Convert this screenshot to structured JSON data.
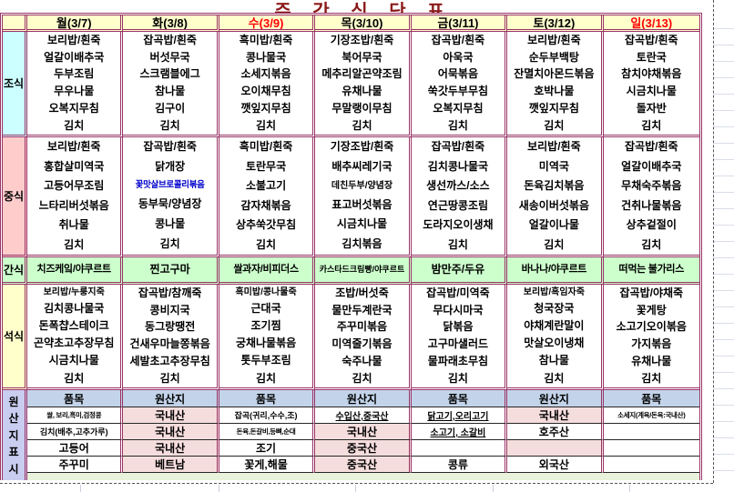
{
  "title": "주 간 식 단 표",
  "colors": {
    "border": "#993366",
    "title_color": "#8B1A1A",
    "header_bg": "#FFFFCC",
    "breakfast_label_bg": "#CCFFFF",
    "lunch_label_bg": "#FFCCCC",
    "snack_bg": "#CCFFCC",
    "dinner_label_bg": "#FFFFCC",
    "origin_header_bg": "#C3D4EA",
    "origin_label_bg": "#C9CDEF",
    "origin_pink_bg": "#F6DDDD",
    "band_green_bg": "#E9F3DC",
    "red_text": "#FF0000",
    "blue_text": "#0000CC"
  },
  "days": [
    {
      "label": "월(3/7)",
      "red": false
    },
    {
      "label": "화(3/8)",
      "red": false
    },
    {
      "label": "수(3/9)",
      "red": true
    },
    {
      "label": "목(3/10)",
      "red": false
    },
    {
      "label": "금(3/11)",
      "red": false
    },
    {
      "label": "토(3/12)",
      "red": false
    },
    {
      "label": "일(3/13)",
      "red": true
    }
  ],
  "special": {
    "blue_item": "꽃맛살브로콜리볶음"
  },
  "sections": [
    {
      "id": "breakfast",
      "label": "조식",
      "columns": [
        [
          "보리밥/흰죽",
          "얼갈이배추국",
          "두부조림",
          "무우나물",
          "오복지무침",
          "김치"
        ],
        [
          "잡곡밥/흰죽",
          "버섯무국",
          "스크램블에그",
          "참나물",
          "김구이",
          "김치"
        ],
        [
          "흑미밥/흰죽",
          "콩나물국",
          "소세지볶음",
          "오이채무침",
          "깻잎지무침",
          "김치"
        ],
        [
          "기장조밥/흰죽",
          "북어무국",
          "메추리알곤약조림",
          "유채나물",
          "무말랭이무침",
          "김치"
        ],
        [
          "잡곡밥/흰죽",
          "아욱국",
          "어묵볶음",
          "쑥갓두부무침",
          "오복지무침",
          "김치"
        ],
        [
          "보리밥/흰죽",
          "순두부백탕",
          "잔멸치아몬드볶음",
          "호박나물",
          "깻잎지무침",
          "김치"
        ],
        [
          "잡곡밥/흰죽",
          "토란국",
          "참치야채볶음",
          "시금치나물",
          "돌자반",
          "김치"
        ]
      ]
    },
    {
      "id": "lunch",
      "label": "중식",
      "columns": [
        [
          "보리밥/흰죽",
          "홍합살미역국",
          "고등어무조림",
          "느타리버섯볶음",
          "취나물",
          "김치"
        ],
        [
          "잡곡밥/흰죽",
          "닭개장",
          "꽃맛살브로콜리볶음",
          "동부묵/양념장",
          "콩나물",
          "김치"
        ],
        [
          "흑미밥/흰죽",
          "토란무국",
          "소불고기",
          "감자채볶음",
          "상추쑥갓무침",
          "김치"
        ],
        [
          "기장조밥/흰죽",
          "배추씨레기국",
          "데친두부/양념장",
          "표고버섯볶음",
          "시금치나물",
          "김치볶음"
        ],
        [
          "잡곡밥/흰죽",
          "김치콩나물국",
          "생선까스/소스",
          "연근땅콩조림",
          "도라지오이생채",
          "김치"
        ],
        [
          "보리밥/흰죽",
          "미역국",
          "돈육김치볶음",
          "새송이버섯볶음",
          "얼갈이나물",
          "김치"
        ],
        [
          "잡곡밥/흰죽",
          "얼갈이배추국",
          "무채숙주볶음",
          "건취나물볶음",
          "상추겉절이",
          "김치"
        ]
      ]
    },
    {
      "id": "snack",
      "label": "간식",
      "columns": [
        "치즈케잌/야쿠르트",
        "찐고구마",
        "쌀과자/비피더스",
        "카스타드크림빵/야쿠르트",
        "밤만주/두유",
        "바나나/야쿠르트",
        "떠먹는 불가리스"
      ]
    },
    {
      "id": "dinner",
      "label": "석식",
      "columns": [
        [
          "보리밥/누룽지죽",
          "김치콩나물국",
          "돈폭챱스테이크",
          "곤약초고추장무침",
          "시금치나물",
          "김치"
        ],
        [
          "잡곡밥/참깨죽",
          "콩비지국",
          "동그랑땡전",
          "건새우마늘쫑볶음",
          "세발초고추장무침",
          "김치"
        ],
        [
          "흑미밥/콩나물죽",
          "근대국",
          "조기찜",
          "궁채나물볶음",
          "톳두부조림",
          "김치"
        ],
        [
          "조밥/버섯죽",
          "물만두계란국",
          "주꾸미볶음",
          "미역줄기볶음",
          "숙주나물",
          "김치"
        ],
        [
          "잡곡밥/미역죽",
          "무다시마국",
          "닭볶음",
          "고구마샐러드",
          "물파래초무침",
          "김치"
        ],
        [
          "보리밥/흑임자죽",
          "청국장국",
          "야채계란말이",
          "맛살오이냉채",
          "참나물",
          "김치"
        ],
        [
          "잡곡밥/야채죽",
          "꽃게탕",
          "소고기오이볶음",
          "가지볶음",
          "유채나물",
          "김치"
        ]
      ]
    }
  ],
  "origin": {
    "label": "원산지표시",
    "headers": [
      "품목",
      "원산지",
      "품목",
      "원산지",
      "품목",
      "원산지",
      "품목"
    ],
    "rows": [
      [
        "쌀, 보리,흑미,검정콩",
        "국내산",
        "잡곡(귀리,수수,조)",
        "수입산,중국산",
        "닭고기,오리고기",
        "국내산",
        "소세지(계육/돈육:국내산)"
      ],
      [
        "김치(배추,고추가루)",
        "국내산",
        "돈육,돈갈비,등뼈,순대",
        "국내산",
        "소고기, 소갈비",
        "호주산",
        ""
      ],
      [
        "고등어",
        "국내산",
        "조기",
        "중국산",
        "",
        "",
        ""
      ],
      [
        "주꾸미",
        "베트남",
        "꽃게,해물",
        "중국산",
        "콩류",
        "외국산",
        ""
      ]
    ],
    "pink_cells": [
      [
        false,
        true,
        false,
        false,
        false,
        true,
        false
      ],
      [
        false,
        true,
        false,
        true,
        false,
        false,
        false
      ],
      [
        false,
        true,
        false,
        true,
        false,
        true,
        false
      ],
      [
        false,
        true,
        false,
        true,
        false,
        false,
        false
      ]
    ],
    "underline_cells": [
      [
        0,
        3
      ],
      [
        0,
        4
      ],
      [
        1,
        4
      ]
    ]
  }
}
